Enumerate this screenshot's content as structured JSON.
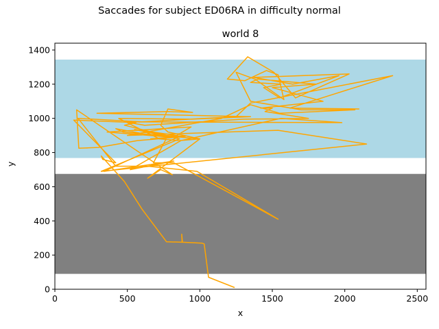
{
  "chart_data": {
    "type": "line",
    "suptitle": "Saccades for subject ED06RA in difficulty normal",
    "title": "world 8",
    "xlabel": "x",
    "ylabel": "y",
    "xlim": [
      0,
      2560
    ],
    "ylim": [
      0,
      1440
    ],
    "xticks": [
      0,
      500,
      1000,
      1500,
      2000,
      2500
    ],
    "yticks": [
      0,
      200,
      400,
      600,
      800,
      1000,
      1200,
      1400
    ],
    "regions": [
      {
        "name": "sky",
        "y0": 768,
        "y1": 1344,
        "color": "#add8e6"
      },
      {
        "name": "ground",
        "y0": 90,
        "y1": 675,
        "color": "#808080"
      }
    ],
    "line_color": "#ffa500",
    "series": [
      {
        "points": [
          [
            1240,
            10
          ],
          [
            1060,
            70
          ],
          [
            1030,
            265
          ],
          [
            1015,
            270
          ],
          [
            880,
            275
          ],
          [
            875,
            322
          ],
          [
            878,
            275
          ],
          [
            770,
            278
          ],
          [
            600,
            470
          ],
          [
            480,
            630
          ],
          [
            320,
            780
          ],
          [
            330,
            760
          ],
          [
            420,
            740
          ],
          [
            130,
            990
          ],
          [
            560,
            975
          ],
          [
            480,
            960
          ],
          [
            860,
            880
          ],
          [
            550,
            935
          ],
          [
            840,
            900
          ],
          [
            940,
            950
          ],
          [
            360,
            920
          ],
          [
            800,
            890
          ],
          [
            660,
            880
          ],
          [
            900,
            895
          ],
          [
            640,
            905
          ],
          [
            420,
            940
          ],
          [
            470,
            920
          ],
          [
            1000,
            880
          ],
          [
            780,
            920
          ],
          [
            730,
            960
          ],
          [
            780,
            1055
          ],
          [
            950,
            1035
          ],
          [
            780,
            1040
          ],
          [
            290,
            1030
          ],
          [
            1350,
            1010
          ],
          [
            940,
            995
          ],
          [
            440,
            1000
          ],
          [
            720,
            880
          ],
          [
            860,
            870
          ],
          [
            1000,
            880
          ],
          [
            640,
            650
          ],
          [
            730,
            700
          ],
          [
            810,
            670
          ],
          [
            150,
            1050
          ],
          [
            165,
            825
          ],
          [
            300,
            830
          ],
          [
            570,
            870
          ],
          [
            850,
            890
          ],
          [
            340,
            690
          ],
          [
            820,
            750
          ],
          [
            520,
            700
          ],
          [
            870,
            870
          ],
          [
            1560,
            1000
          ],
          [
            1980,
            975
          ],
          [
            480,
            980
          ],
          [
            620,
            960
          ],
          [
            1300,
            995
          ],
          [
            1750,
            1000
          ],
          [
            1450,
            1040
          ],
          [
            1500,
            1060
          ],
          [
            1420,
            1060
          ],
          [
            1850,
            1100
          ],
          [
            1500,
            1180
          ],
          [
            1650,
            1190
          ],
          [
            1800,
            1200
          ],
          [
            1400,
            1230
          ],
          [
            1350,
            1210
          ],
          [
            1560,
            1200
          ],
          [
            1440,
            1180
          ],
          [
            1550,
            1120
          ],
          [
            1960,
            1250
          ],
          [
            1640,
            1200
          ],
          [
            1370,
            1240
          ],
          [
            2030,
            1260
          ],
          [
            1660,
            1120
          ],
          [
            1510,
            1270
          ],
          [
            1330,
            1360
          ],
          [
            1190,
            1230
          ],
          [
            1310,
            1220
          ],
          [
            1460,
            1280
          ],
          [
            1540,
            1255
          ],
          [
            1580,
            1110
          ],
          [
            1380,
            1230
          ],
          [
            1250,
            1270
          ],
          [
            1350,
            1100
          ],
          [
            1700,
            1050
          ],
          [
            2070,
            1050
          ],
          [
            1550,
            1030
          ],
          [
            1350,
            1080
          ],
          [
            1150,
            1000
          ],
          [
            500,
            900
          ],
          [
            1540,
            930
          ],
          [
            2150,
            850
          ],
          [
            320,
            690
          ],
          [
            860,
            880
          ],
          [
            780,
            900
          ],
          [
            680,
            740
          ],
          [
            820,
            740
          ],
          [
            1540,
            410
          ],
          [
            980,
            690
          ],
          [
            640,
            720
          ],
          [
            420,
            720
          ],
          [
            160,
            1000
          ],
          [
            600,
            980
          ],
          [
            1250,
            1010
          ],
          [
            1350,
            1090
          ],
          [
            2330,
            1250
          ],
          [
            1880,
            1130
          ],
          [
            1620,
            1060
          ],
          [
            2100,
            1055
          ]
        ]
      }
    ]
  }
}
